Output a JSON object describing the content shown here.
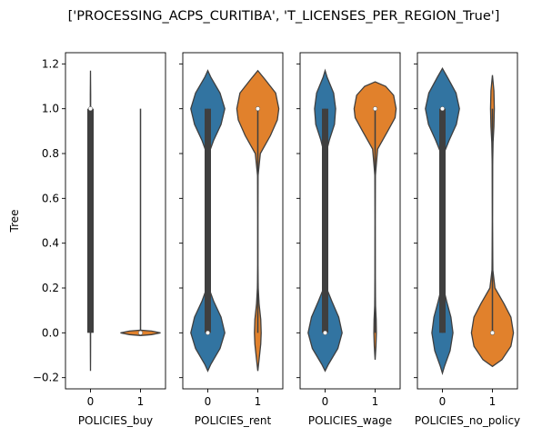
{
  "chart_data": {
    "type": "violin",
    "title": "['PROCESSING_ACPS_CURITIBA', 'T_LICENSES_PER_REGION_True']",
    "ylabel": "Tree",
    "ylim": [
      -0.25,
      1.25
    ],
    "yticks": [
      -0.2,
      0.0,
      0.2,
      0.4,
      0.6,
      0.8,
      1.0,
      1.2
    ],
    "ytick_labels": [
      "−0.2",
      "0.0",
      "0.2",
      "0.4",
      "0.6",
      "0.8",
      "1.0",
      "1.2"
    ],
    "colors": {
      "0": "#3274a1",
      "1": "#e1812c",
      "inner": "#3f3f3f",
      "edge": "#3f3f3f"
    },
    "panels": [
      {
        "xlabel": "POLICIES_buy",
        "categories": [
          "0",
          "1"
        ],
        "violins": [
          {
            "category": "0",
            "median": 1.0,
            "q1": 0.0,
            "q3": 1.0,
            "min": 0.0,
            "max": 1.0,
            "kde_low": -0.17,
            "kde_high": 1.17,
            "max_half_width": 0.04,
            "density": [
              [
                -0.17,
                0.0
              ],
              [
                -0.1,
                0.04
              ],
              [
                0.0,
                0.07
              ],
              [
                0.1,
                0.06
              ],
              [
                0.3,
                0.045
              ],
              [
                0.5,
                0.04
              ],
              [
                0.7,
                0.045
              ],
              [
                0.9,
                0.06
              ],
              [
                1.0,
                0.08
              ],
              [
                1.06,
                0.09
              ],
              [
                1.12,
                0.04
              ],
              [
                1.17,
                0.0
              ]
            ]
          },
          {
            "category": "1",
            "median": 0.0,
            "q1": 0.0,
            "q3": 0.0,
            "min": 0.0,
            "max": 1.0,
            "kde_low": -0.012,
            "kde_high": 0.012,
            "max_half_width": 0.4,
            "density": [
              [
                -0.012,
                0.0
              ],
              [
                -0.008,
                0.55
              ],
              [
                0.0,
                1.0
              ],
              [
                0.008,
                0.55
              ],
              [
                0.012,
                0.0
              ]
            ]
          }
        ]
      },
      {
        "xlabel": "POLICIES_rent",
        "categories": [
          "0",
          "1"
        ],
        "violins": [
          {
            "category": "0",
            "median": 0.0,
            "q1": 0.0,
            "q3": 1.0,
            "min": 0.0,
            "max": 1.0,
            "kde_low": -0.17,
            "kde_high": 1.17,
            "max_half_width": 0.34,
            "density": [
              [
                -0.17,
                0.0
              ],
              [
                -0.14,
                0.18
              ],
              [
                -0.07,
                0.72
              ],
              [
                0.0,
                1.0
              ],
              [
                0.07,
                0.78
              ],
              [
                0.14,
                0.35
              ],
              [
                0.2,
                0.06
              ],
              [
                0.28,
                0.01
              ],
              [
                0.5,
                0.0
              ],
              [
                0.72,
                0.01
              ],
              [
                0.8,
                0.06
              ],
              [
                0.86,
                0.35
              ],
              [
                0.93,
                0.78
              ],
              [
                1.0,
                1.0
              ],
              [
                1.07,
                0.72
              ],
              [
                1.14,
                0.18
              ],
              [
                1.17,
                0.0
              ]
            ]
          },
          {
            "category": "1",
            "median": 1.0,
            "q1": 1.0,
            "q3": 1.0,
            "min": 0.0,
            "max": 1.0,
            "kde_low": -0.17,
            "kde_high": 1.17,
            "max_half_width": 0.42,
            "density": [
              [
                -0.17,
                0.0
              ],
              [
                -0.12,
                0.06
              ],
              [
                -0.05,
                0.14
              ],
              [
                0.0,
                0.16
              ],
              [
                0.06,
                0.14
              ],
              [
                0.13,
                0.06
              ],
              [
                0.2,
                0.02
              ],
              [
                0.3,
                0.003
              ],
              [
                0.5,
                0.0
              ],
              [
                0.7,
                0.01
              ],
              [
                0.8,
                0.12
              ],
              [
                0.88,
                0.6
              ],
              [
                0.95,
                0.93
              ],
              [
                1.0,
                1.0
              ],
              [
                1.07,
                0.85
              ],
              [
                1.13,
                0.35
              ],
              [
                1.17,
                0.0
              ]
            ]
          }
        ]
      },
      {
        "xlabel": "POLICIES_wage",
        "categories": [
          "0",
          "1"
        ],
        "violins": [
          {
            "category": "0",
            "median": 0.0,
            "q1": 0.0,
            "q3": 1.0,
            "min": 0.0,
            "max": 1.0,
            "kde_low": -0.17,
            "kde_high": 1.17,
            "max_half_width": 0.34,
            "density": [
              [
                -0.17,
                0.0
              ],
              [
                -0.14,
                0.2
              ],
              [
                -0.07,
                0.75
              ],
              [
                0.0,
                1.0
              ],
              [
                0.07,
                0.8
              ],
              [
                0.14,
                0.4
              ],
              [
                0.2,
                0.08
              ],
              [
                0.28,
                0.01
              ],
              [
                0.5,
                0.0
              ],
              [
                0.72,
                0.01
              ],
              [
                0.8,
                0.05
              ],
              [
                0.86,
                0.25
              ],
              [
                0.93,
                0.55
              ],
              [
                1.0,
                0.62
              ],
              [
                1.07,
                0.5
              ],
              [
                1.14,
                0.12
              ],
              [
                1.17,
                0.0
              ]
            ]
          },
          {
            "category": "1",
            "median": 1.0,
            "q1": 1.0,
            "q3": 1.0,
            "min": 0.0,
            "max": 1.0,
            "kde_low": -0.12,
            "kde_high": 1.12,
            "max_half_width": 0.42,
            "density": [
              [
                -0.12,
                0.0
              ],
              [
                -0.06,
                0.04
              ],
              [
                0.0,
                0.06
              ],
              [
                0.06,
                0.05
              ],
              [
                0.12,
                0.02
              ],
              [
                0.25,
                0.005
              ],
              [
                0.5,
                0.0
              ],
              [
                0.7,
                0.01
              ],
              [
                0.82,
                0.12
              ],
              [
                0.9,
                0.6
              ],
              [
                0.96,
                0.95
              ],
              [
                1.0,
                1.0
              ],
              [
                1.06,
                0.88
              ],
              [
                1.1,
                0.5
              ],
              [
                1.12,
                0.0
              ]
            ]
          }
        ]
      },
      {
        "xlabel": "POLICIES_no_policy",
        "categories": [
          "0",
          "1"
        ],
        "violins": [
          {
            "category": "0",
            "median": 1.0,
            "q1": 0.0,
            "q3": 1.0,
            "min": 0.0,
            "max": 1.0,
            "kde_low": -0.18,
            "kde_high": 1.18,
            "max_half_width": 0.34,
            "density": [
              [
                -0.18,
                0.0
              ],
              [
                -0.15,
                0.12
              ],
              [
                -0.08,
                0.45
              ],
              [
                0.0,
                0.62
              ],
              [
                0.07,
                0.5
              ],
              [
                0.14,
                0.25
              ],
              [
                0.2,
                0.06
              ],
              [
                0.28,
                0.01
              ],
              [
                0.5,
                0.0
              ],
              [
                0.72,
                0.01
              ],
              [
                0.8,
                0.08
              ],
              [
                0.86,
                0.4
              ],
              [
                0.93,
                0.82
              ],
              [
                1.0,
                1.0
              ],
              [
                1.07,
                0.8
              ],
              [
                1.14,
                0.3
              ],
              [
                1.18,
                0.0
              ]
            ]
          },
          {
            "category": "1",
            "median": 0.0,
            "q1": 0.0,
            "q3": 0.0,
            "min": 0.0,
            "max": 1.0,
            "kde_low": -0.15,
            "kde_high": 1.15,
            "max_half_width": 0.42,
            "density": [
              [
                -0.15,
                0.0
              ],
              [
                -0.12,
                0.45
              ],
              [
                -0.06,
                0.88
              ],
              [
                0.0,
                1.0
              ],
              [
                0.07,
                0.88
              ],
              [
                0.13,
                0.55
              ],
              [
                0.2,
                0.12
              ],
              [
                0.28,
                0.02
              ],
              [
                0.5,
                0.0
              ],
              [
                0.75,
                0.01
              ],
              [
                0.85,
                0.03
              ],
              [
                0.92,
                0.07
              ],
              [
                1.0,
                0.09
              ],
              [
                1.08,
                0.07
              ],
              [
                1.15,
                0.0
              ]
            ]
          }
        ]
      }
    ]
  }
}
